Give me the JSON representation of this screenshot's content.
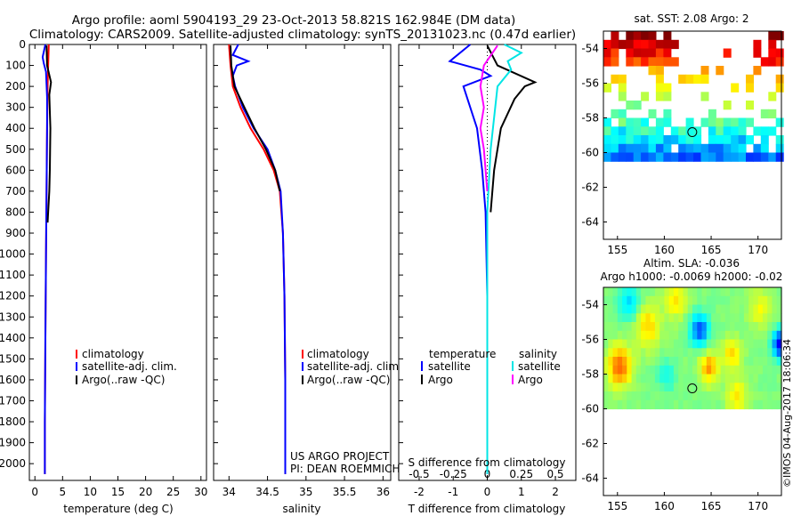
{
  "header": {
    "line1": "Argo profile: aoml 5904193_29 23-Oct-2013 58.821S 162.984E (DM data)",
    "line2": "Climatology: CARS2009. Satellite-adjusted climatology: synTS_20131023.nc (0.47d earlier)"
  },
  "colors": {
    "climatology": "#ff0000",
    "satellite": "#0000ff",
    "argo": "#000000",
    "argo_sal_diff": "#ff00ff",
    "sat_sal_diff": "#00e5e5"
  },
  "chart_data": [
    {
      "id": "temperature",
      "type": "line",
      "xlabel": "temperature (deg C)",
      "xlim": [
        -1,
        31
      ],
      "xticks": [
        "0",
        "5",
        "10",
        "15",
        "20",
        "25",
        "30"
      ],
      "xtick_values": [
        0,
        5,
        10,
        15,
        20,
        25,
        30
      ],
      "ylim": [
        0,
        2080
      ],
      "yticks": [
        "0",
        "100",
        "200",
        "300",
        "400",
        "500",
        "600",
        "700",
        "800",
        "900",
        "1000",
        "1100",
        "1200",
        "1300",
        "1400",
        "1500",
        "1600",
        "1700",
        "1800",
        "1900",
        "2000"
      ],
      "legend_items": [
        "climatology",
        "satellite-adj. clim.",
        "Argo(..raw -QC)"
      ],
      "series": [
        {
          "name": "climatology",
          "color": "#ff0000",
          "x": [
            2.5,
            2.4,
            2.3,
            2.2,
            2.1,
            2.0,
            1.9,
            1.8,
            1.8
          ],
          "y": [
            0,
            100,
            200,
            400,
            700,
            1000,
            1400,
            1800,
            2050
          ]
        },
        {
          "name": "satellite-adj. clim.",
          "color": "#0000ff",
          "x": [
            1.9,
            1.4,
            1.6,
            2.0,
            2.2,
            2.2,
            2.1,
            2.0,
            1.9,
            1.8,
            1.8
          ],
          "y": [
            0,
            60,
            90,
            130,
            250,
            400,
            700,
            1000,
            1400,
            1800,
            2050
          ]
        },
        {
          "name": "Argo",
          "color": "#000000",
          "x": [
            2.1,
            2.2,
            2.9,
            2.6,
            2.8,
            2.7,
            2.6,
            2.4,
            2.3
          ],
          "y": [
            5,
            100,
            180,
            240,
            400,
            600,
            700,
            800,
            850
          ]
        }
      ]
    },
    {
      "id": "salinity",
      "type": "line",
      "xlabel": "salinity",
      "xlim": [
        33.8,
        36.1
      ],
      "xticks": [
        "34",
        "34.5",
        "35",
        "35.5",
        "36"
      ],
      "xtick_values": [
        34,
        34.5,
        35,
        35.5,
        36
      ],
      "ylim": [
        0,
        2080
      ],
      "legend_items": [
        "climatology",
        "satellite-adj. clim.",
        "Argo(..raw -QC)"
      ],
      "series": [
        {
          "name": "climatology",
          "color": "#ff0000",
          "x": [
            34.0,
            34.02,
            34.05,
            34.15,
            34.28,
            34.45,
            34.58,
            34.66,
            34.7,
            34.72,
            34.73,
            34.73
          ],
          "y": [
            0,
            100,
            200,
            300,
            400,
            500,
            600,
            700,
            900,
            1200,
            1600,
            2050
          ]
        },
        {
          "name": "satellite-adj. clim.",
          "color": "#0000ff",
          "x": [
            34.12,
            34.05,
            34.25,
            34.1,
            34.05,
            34.08,
            34.18,
            34.32,
            34.5,
            34.6,
            34.67,
            34.7,
            34.72,
            34.73,
            34.73
          ],
          "y": [
            0,
            50,
            80,
            100,
            150,
            200,
            300,
            400,
            500,
            600,
            700,
            900,
            1200,
            1600,
            2050
          ]
        },
        {
          "name": "Argo",
          "color": "#000000",
          "x": [
            34.02,
            34.03,
            34.07,
            34.2,
            34.33,
            34.48,
            34.6,
            34.66
          ],
          "y": [
            5,
            100,
            200,
            300,
            400,
            500,
            600,
            700
          ]
        }
      ]
    },
    {
      "id": "difference",
      "type": "line",
      "xlabel": "T difference from climatology",
      "xlabel_top": "S difference from climatology",
      "xlim": [
        -2.6,
        2.6
      ],
      "xticks": [
        "-2",
        "-1",
        "0",
        "1",
        "2"
      ],
      "xtick_values": [
        -2,
        -1,
        0,
        1,
        2
      ],
      "xticks_top": [
        "-0.5",
        "-0.25",
        "0",
        "0.25",
        "0.5"
      ],
      "xtick_top_values": [
        -2,
        -1,
        0,
        1,
        2
      ],
      "ylim": [
        0,
        2080
      ],
      "legend_temp_title": "temperature",
      "legend_sal_title": "salinity",
      "legend_items": [
        "satellite",
        "Argo",
        "satellite",
        "Argo"
      ],
      "series": [
        {
          "name": "T satellite",
          "color": "#0000ff",
          "x": [
            -0.5,
            -1.1,
            -0.2,
            0.1,
            -0.7,
            -0.3,
            -0.15,
            -0.05,
            0,
            0,
            0
          ],
          "y": [
            0,
            80,
            120,
            150,
            200,
            400,
            600,
            800,
            1200,
            1600,
            2050
          ]
        },
        {
          "name": "T Argo",
          "color": "#000000",
          "x": [
            0,
            0.3,
            1.4,
            1.1,
            0.8,
            0.4,
            0.2,
            0.1
          ],
          "y": [
            5,
            100,
            180,
            200,
            260,
            400,
            600,
            800
          ]
        },
        {
          "name": "S satellite",
          "color": "#00e5e5",
          "x": [
            0.5,
            1.0,
            0.6,
            0.7,
            0.3,
            0.1,
            0,
            0,
            0
          ],
          "y": [
            0,
            40,
            80,
            120,
            200,
            500,
            800,
            1200,
            2050
          ]
        },
        {
          "name": "S Argo",
          "color": "#ff00ff",
          "x": [
            0.3,
            -0.1,
            -0.2,
            -0.1,
            -0.2,
            -0.1,
            -0.05,
            0
          ],
          "y": [
            5,
            100,
            200,
            300,
            400,
            500,
            600,
            700
          ]
        }
      ]
    },
    {
      "id": "sst-map",
      "type": "heatmap",
      "title": "sat. SST: 2.08 Argo: 2",
      "xlim": [
        153.5,
        172.5
      ],
      "ylim": [
        -65,
        -53
      ],
      "xticks": [
        "155",
        "160",
        "165",
        "170"
      ],
      "xtick_values": [
        155,
        160,
        165,
        170
      ],
      "yticks": [
        "-54",
        "-56",
        "-58",
        "-60",
        "-62",
        "-64"
      ],
      "ytick_values": [
        -54,
        -56,
        -58,
        -60,
        -62,
        -64
      ],
      "marker": [
        162.984,
        -58.821
      ]
    },
    {
      "id": "sla-map",
      "type": "heatmap",
      "title": "Altim. SLA: -0.036",
      "subtitle": "Argo h1000: -0.0069 h2000: -0.02",
      "xlim": [
        153.5,
        172.5
      ],
      "ylim": [
        -65,
        -53
      ],
      "xticks": [
        "155",
        "160",
        "165",
        "170"
      ],
      "xtick_values": [
        155,
        160,
        165,
        170
      ],
      "yticks": [
        "-54",
        "-56",
        "-58",
        "-60",
        "-62",
        "-64"
      ],
      "ytick_values": [
        -54,
        -56,
        -58,
        -60,
        -62,
        -64
      ],
      "marker": [
        162.984,
        -58.821
      ]
    }
  ],
  "credits": {
    "line1": "US ARGO PROJECT",
    "line2": "PI: DEAN ROEMMICH"
  },
  "timestamp": "©IMOS 04-Aug-2017 18:06:34"
}
